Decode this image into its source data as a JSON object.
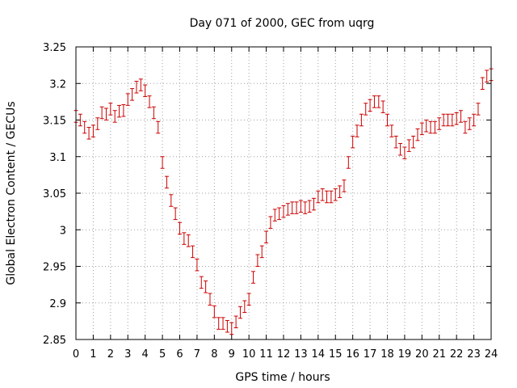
{
  "chart_data": {
    "type": "scatter",
    "title": "Day 071 of 2000, GEC from uqrg",
    "xlabel": "GPS time / hours",
    "ylabel": "Global Electron Content / GECUs",
    "xlim": [
      0,
      24
    ],
    "ylim": [
      2.85,
      3.25
    ],
    "x_ticks": [
      0,
      1,
      2,
      3,
      4,
      5,
      6,
      7,
      8,
      9,
      10,
      11,
      12,
      13,
      14,
      15,
      16,
      17,
      18,
      19,
      20,
      21,
      22,
      23,
      24
    ],
    "x_tick_labels": [
      "0",
      "1",
      "2",
      "3",
      "4",
      "5",
      "6",
      "7",
      "8",
      "9",
      "10",
      "11",
      "12",
      "13",
      "14",
      "15",
      "16",
      "17",
      "18",
      "19",
      "20",
      "21",
      "22",
      "23",
      "24"
    ],
    "y_ticks": [
      2.85,
      2.9,
      2.95,
      3.0,
      3.05,
      3.1,
      3.15,
      3.2,
      3.25
    ],
    "y_tick_labels": [
      "2.85",
      "2.9",
      "2.95",
      "3",
      "3.05",
      "3.1",
      "3.15",
      "3.2",
      "3.25"
    ],
    "grid": true,
    "color": "#cc0000",
    "error": 0.008,
    "x": [
      0.0,
      0.25,
      0.5,
      0.75,
      1.0,
      1.25,
      1.5,
      1.75,
      2.0,
      2.25,
      2.5,
      2.75,
      3.0,
      3.25,
      3.5,
      3.75,
      4.0,
      4.25,
      4.5,
      4.75,
      5.0,
      5.25,
      5.5,
      5.75,
      6.0,
      6.25,
      6.5,
      6.75,
      7.0,
      7.25,
      7.5,
      7.75,
      8.0,
      8.25,
      8.5,
      8.75,
      9.0,
      9.25,
      9.5,
      9.75,
      10.0,
      10.25,
      10.5,
      10.75,
      11.0,
      11.25,
      11.5,
      11.75,
      12.0,
      12.25,
      12.5,
      12.75,
      13.0,
      13.25,
      13.5,
      13.75,
      14.0,
      14.25,
      14.5,
      14.75,
      15.0,
      15.25,
      15.5,
      15.75,
      16.0,
      16.25,
      16.5,
      16.75,
      17.0,
      17.25,
      17.5,
      17.75,
      18.0,
      18.25,
      18.5,
      18.75,
      19.0,
      19.25,
      19.5,
      19.75,
      20.0,
      20.25,
      20.5,
      20.75,
      21.0,
      21.25,
      21.5,
      21.75,
      22.0,
      22.25,
      22.5,
      22.75,
      23.0,
      23.25,
      23.5,
      23.75,
      24.0
    ],
    "y": [
      3.155,
      3.15,
      3.14,
      3.132,
      3.135,
      3.145,
      3.16,
      3.158,
      3.165,
      3.155,
      3.162,
      3.163,
      3.178,
      3.185,
      3.195,
      3.198,
      3.19,
      3.175,
      3.16,
      3.14,
      3.092,
      3.065,
      3.04,
      3.022,
      3.002,
      2.988,
      2.985,
      2.97,
      2.952,
      2.928,
      2.922,
      2.905,
      2.888,
      2.872,
      2.872,
      2.868,
      2.865,
      2.874,
      2.887,
      2.895,
      2.905,
      2.935,
      2.958,
      2.97,
      2.99,
      3.01,
      3.02,
      3.022,
      3.025,
      3.028,
      3.03,
      3.03,
      3.032,
      3.03,
      3.032,
      3.035,
      3.045,
      3.048,
      3.045,
      3.045,
      3.048,
      3.052,
      3.06,
      3.092,
      3.12,
      3.135,
      3.15,
      3.165,
      3.17,
      3.175,
      3.175,
      3.168,
      3.15,
      3.135,
      3.12,
      3.11,
      3.105,
      3.115,
      3.12,
      3.13,
      3.138,
      3.142,
      3.14,
      3.14,
      3.145,
      3.15,
      3.15,
      3.15,
      3.152,
      3.155,
      3.14,
      3.145,
      3.15,
      3.165,
      3.2,
      3.21,
      3.212
    ]
  }
}
